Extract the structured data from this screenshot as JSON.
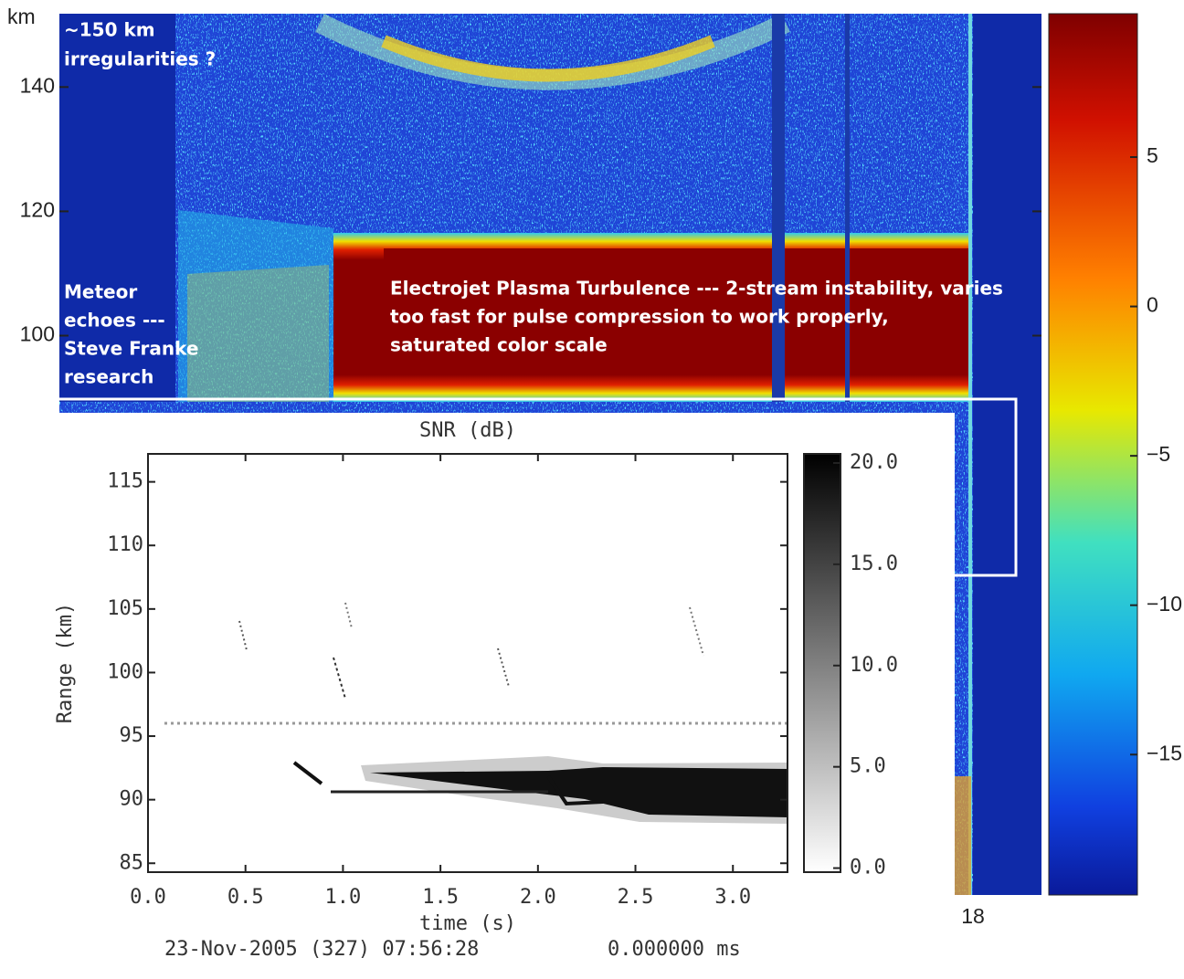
{
  "chart_data": [
    {
      "type": "heatmap",
      "ylabel": "km",
      "ylim": [
        10,
        151.8
      ],
      "yticks": [
        100,
        120,
        140
      ],
      "x_tick_label": "18",
      "colorbar": {
        "lim": [
          -19.7,
          9.8
        ],
        "ticks": [
          5,
          0,
          {
            "value": -5,
            "label": "−5"
          },
          {
            "value": -10,
            "label": "−10"
          },
          {
            "value": -15,
            "label": "−15"
          }
        ]
      },
      "annotations": [
        {
          "lines": [
            "~150 km",
            "irregularities ?"
          ]
        },
        {
          "lines": [
            "Meteor",
            "echoes ---",
            "Steve Franke",
            "research"
          ]
        },
        {
          "lines": [
            "Electrojet Plasma Turbulence --- 2-stream instability, varies",
            "too fast for pulse compression to work properly,",
            "saturated color scale"
          ]
        }
      ]
    },
    {
      "type": "heatmap",
      "title": "SNR (dB)",
      "xlabel": "time (s)",
      "ylabel": "Range (km)",
      "xlim": [
        0,
        3.28
      ],
      "xticks": [
        {
          "value": 0,
          "label": "0.0"
        },
        0.5,
        {
          "value": 1,
          "label": "1.0"
        },
        1.5,
        {
          "value": 2,
          "label": "2.0"
        },
        2.5,
        {
          "value": 3,
          "label": "3.0"
        }
      ],
      "ylim": [
        84.3,
        117.2
      ],
      "yticks": [
        85,
        90,
        95,
        100,
        105,
        110,
        115
      ],
      "colorbar": {
        "lim": [
          -0.2,
          20.45
        ],
        "ticks": [
          {
            "value": 0,
            "label": "0.0"
          },
          {
            "value": 5,
            "label": "5.0"
          },
          {
            "value": 10,
            "label": "10.0"
          },
          {
            "value": 15,
            "label": "15.0"
          },
          {
            "value": 20,
            "label": "20.0"
          }
        ]
      },
      "footer": [
        "23-Nov-2005 (327) 07:56:28",
        "0.000000 ms"
      ]
    }
  ]
}
